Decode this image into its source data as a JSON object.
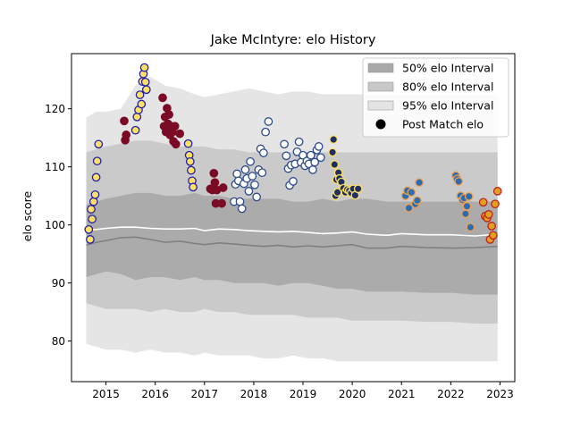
{
  "chart_data": {
    "type": "scatter",
    "title": "Jake McIntyre: elo History",
    "xlabel": "",
    "ylabel": "elo score",
    "xlim": [
      2014.3,
      2023.3
    ],
    "ylim": [
      73,
      129.5
    ],
    "x_ticks": [
      2015,
      2016,
      2017,
      2018,
      2019,
      2020,
      2021,
      2022,
      2023
    ],
    "x_tick_labels": [
      "2015",
      "2016",
      "2017",
      "2018",
      "2019",
      "2020",
      "2021",
      "2022",
      "2023"
    ],
    "y_ticks": [
      80,
      90,
      100,
      110,
      120
    ],
    "y_tick_labels": [
      "80",
      "90",
      "100",
      "110",
      "120"
    ],
    "grid": false,
    "legend_position": "top-right",
    "legend": [
      {
        "label": "50% elo Interval",
        "kind": "band",
        "color": "#a9a9a9"
      },
      {
        "label": "80% elo Interval",
        "kind": "band",
        "color": "#c8c8c8"
      },
      {
        "label": "95% elo Interval",
        "kind": "band",
        "color": "#e4e4e4"
      },
      {
        "label": "Post Match elo",
        "kind": "marker",
        "color": "#000000"
      }
    ],
    "bands": {
      "x": [
        2014.6,
        2014.8,
        2015.0,
        2015.3,
        2015.6,
        2015.9,
        2016.2,
        2016.5,
        2016.8,
        2017.0,
        2017.3,
        2017.6,
        2017.9,
        2018.2,
        2018.5,
        2018.8,
        2019.1,
        2019.4,
        2019.7,
        2020.0,
        2020.3,
        2020.7,
        2021.0,
        2021.5,
        2022.0,
        2022.5,
        2022.95
      ],
      "median": [
        96.5,
        97.0,
        97.3,
        97.8,
        97.9,
        97.5,
        97.0,
        97.2,
        96.8,
        96.6,
        96.9,
        96.7,
        96.5,
        96.3,
        96.5,
        96.2,
        96.4,
        96.2,
        96.4,
        96.6,
        96.0,
        96.0,
        96.3,
        96.1,
        96.0,
        96.1,
        96.3
      ],
      "mean": [
        99.1,
        99.2,
        99.4,
        99.6,
        99.6,
        99.4,
        99.3,
        99.3,
        99.4,
        99.0,
        99.3,
        99.2,
        99.0,
        98.9,
        98.8,
        98.9,
        98.7,
        98.5,
        98.6,
        98.8,
        98.4,
        98.2,
        98.5,
        98.3,
        98.3,
        98.1,
        98.4
      ],
      "p50_low": [
        91.0,
        91.5,
        92.0,
        91.5,
        90.5,
        91.0,
        91.0,
        90.5,
        91.0,
        90.5,
        90.5,
        90.0,
        90.0,
        90.0,
        89.5,
        90.0,
        90.0,
        89.5,
        89.0,
        89.0,
        88.5,
        88.5,
        88.5,
        88.3,
        88.3,
        88.0,
        88.0
      ],
      "p50_high": [
        103.5,
        104.0,
        104.5,
        105.0,
        105.5,
        105.5,
        105.0,
        105.0,
        105.5,
        105.0,
        105.0,
        104.5,
        104.5,
        104.5,
        104.5,
        104.0,
        104.0,
        104.5,
        104.0,
        104.5,
        104.5,
        104.0,
        104.0,
        104.0,
        104.0,
        104.0,
        104.0
      ],
      "p80_low": [
        86.5,
        86.0,
        85.5,
        85.5,
        85.5,
        85.0,
        85.5,
        85.0,
        85.0,
        85.5,
        85.0,
        85.0,
        84.5,
        84.5,
        84.5,
        84.5,
        84.0,
        84.0,
        84.0,
        83.5,
        83.5,
        83.5,
        83.5,
        83.3,
        83.3,
        83.0,
        83.0
      ],
      "p80_high": [
        112.5,
        113.0,
        113.5,
        114.0,
        114.5,
        114.5,
        114.0,
        113.5,
        113.5,
        113.5,
        113.0,
        113.0,
        112.5,
        112.5,
        112.5,
        112.5,
        112.5,
        112.5,
        112.5,
        112.5,
        112.5,
        112.5,
        112.5,
        112.5,
        112.5,
        112.5,
        112.5
      ],
      "p95_low": [
        79.5,
        79.0,
        78.5,
        78.5,
        78.0,
        78.5,
        78.0,
        78.0,
        77.5,
        78.0,
        77.5,
        77.5,
        77.5,
        77.0,
        77.0,
        77.5,
        77.0,
        77.0,
        76.5,
        76.5,
        76.5,
        76.5,
        76.5,
        76.5,
        76.5,
        76.5,
        76.5
      ],
      "p95_high": [
        118.5,
        119.5,
        119.5,
        120.0,
        124.0,
        125.5,
        124.0,
        123.5,
        122.5,
        122.0,
        122.5,
        123.0,
        123.5,
        123.0,
        122.5,
        123.0,
        123.0,
        122.5,
        122.5,
        122.5,
        122.5,
        122.5,
        122.5,
        122.5,
        122.5,
        122.5,
        122.5
      ]
    },
    "series": [
      {
        "fill": "#ffe066",
        "edge": "#1f1fa8",
        "points": [
          [
            2014.65,
            99.2
          ],
          [
            2014.68,
            97.5
          ],
          [
            2014.7,
            102.7
          ],
          [
            2014.72,
            101.0
          ],
          [
            2014.75,
            104.0
          ],
          [
            2014.78,
            105.2
          ],
          [
            2014.8,
            108.2
          ],
          [
            2014.82,
            111.0
          ],
          [
            2014.85,
            113.9
          ]
        ]
      },
      {
        "fill": "#7a0a25",
        "edge": "#7a0a25",
        "points": [
          [
            2015.37,
            117.9
          ],
          [
            2015.39,
            114.6
          ],
          [
            2015.41,
            115.5
          ]
        ]
      },
      {
        "fill": "#ffe066",
        "edge": "#1f1fa8",
        "points": [
          [
            2015.6,
            116.3
          ],
          [
            2015.63,
            118.6
          ],
          [
            2015.66,
            119.8
          ],
          [
            2015.69,
            122.4
          ],
          [
            2015.72,
            120.8
          ],
          [
            2015.74,
            124.7
          ],
          [
            2015.76,
            126.0
          ],
          [
            2015.78,
            127.1
          ],
          [
            2015.8,
            124.6
          ],
          [
            2015.82,
            123.3
          ]
        ]
      },
      {
        "fill": "#7a0a25",
        "edge": "#7a0a25",
        "points": [
          [
            2016.15,
            121.9
          ],
          [
            2016.18,
            117.0
          ],
          [
            2016.2,
            118.6
          ],
          [
            2016.22,
            116.0
          ],
          [
            2016.24,
            120.1
          ],
          [
            2016.26,
            117.4
          ],
          [
            2016.28,
            119.0
          ],
          [
            2016.3,
            115.5
          ],
          [
            2016.32,
            117.0
          ],
          [
            2016.35,
            116.0
          ],
          [
            2016.37,
            114.4
          ],
          [
            2016.4,
            117.0
          ],
          [
            2016.42,
            113.9
          ],
          [
            2016.5,
            115.7
          ]
        ]
      },
      {
        "fill": "#ffe066",
        "edge": "#1f1fa8",
        "points": [
          [
            2016.67,
            114.0
          ],
          [
            2016.69,
            112.0
          ],
          [
            2016.71,
            110.9
          ],
          [
            2016.73,
            109.4
          ],
          [
            2016.75,
            107.6
          ],
          [
            2016.77,
            106.5
          ]
        ]
      },
      {
        "fill": "#7a0a25",
        "edge": "#7a0a25",
        "points": [
          [
            2017.12,
            106.2
          ],
          [
            2017.16,
            106.0
          ],
          [
            2017.19,
            108.9
          ],
          [
            2017.21,
            107.3
          ],
          [
            2017.23,
            103.7
          ],
          [
            2017.25,
            106.0
          ],
          [
            2017.35,
            103.7
          ],
          [
            2017.38,
            106.4
          ]
        ]
      },
      {
        "fill": "#ffffff",
        "edge": "#2c4a8a",
        "points": [
          [
            2017.6,
            104.0
          ],
          [
            2017.63,
            107.0
          ],
          [
            2017.66,
            108.8
          ],
          [
            2017.69,
            107.6
          ],
          [
            2017.72,
            104.0
          ],
          [
            2017.76,
            102.8
          ],
          [
            2017.8,
            107.1
          ],
          [
            2017.83,
            109.5
          ],
          [
            2017.86,
            108.0
          ],
          [
            2017.9,
            105.8
          ],
          [
            2017.93,
            110.9
          ],
          [
            2017.97,
            108.4
          ],
          [
            2018.02,
            106.9
          ],
          [
            2018.06,
            104.8
          ],
          [
            2018.1,
            109.5
          ],
          [
            2018.14,
            113.1
          ],
          [
            2018.17,
            109.0
          ],
          [
            2018.2,
            112.4
          ],
          [
            2018.24,
            116.0
          ],
          [
            2018.3,
            117.8
          ]
        ]
      },
      {
        "fill": "#ffffff",
        "edge": "#2c4a8a",
        "points": [
          [
            2018.62,
            113.9
          ],
          [
            2018.66,
            111.9
          ],
          [
            2018.7,
            109.7
          ],
          [
            2018.73,
            106.8
          ],
          [
            2018.76,
            110.3
          ],
          [
            2018.8,
            107.5
          ],
          [
            2018.84,
            110.5
          ],
          [
            2018.88,
            112.6
          ],
          [
            2018.92,
            114.3
          ],
          [
            2018.96,
            110.8
          ],
          [
            2019.0,
            112.0
          ],
          [
            2019.04,
            110.2
          ],
          [
            2019.08,
            111.0
          ],
          [
            2019.12,
            110.5
          ],
          [
            2019.16,
            112.0
          ],
          [
            2019.2,
            109.5
          ],
          [
            2019.24,
            110.8
          ],
          [
            2019.28,
            112.9
          ],
          [
            2019.32,
            113.5
          ],
          [
            2019.36,
            111.6
          ]
        ]
      },
      {
        "fill": "#1f3060",
        "edge": "#ffe066",
        "points": [
          [
            2019.6,
            112.5
          ],
          [
            2019.62,
            114.7
          ],
          [
            2019.64,
            110.4
          ],
          [
            2019.66,
            105.0
          ],
          [
            2019.68,
            107.8
          ],
          [
            2019.7,
            105.6
          ],
          [
            2019.72,
            109.0
          ],
          [
            2019.74,
            108.0
          ],
          [
            2019.78,
            107.4
          ],
          [
            2019.82,
            106.3
          ],
          [
            2019.86,
            105.6
          ],
          [
            2019.9,
            106.1
          ],
          [
            2019.94,
            105.9
          ],
          [
            2019.98,
            105.5
          ],
          [
            2020.02,
            106.2
          ],
          [
            2020.06,
            105.1
          ],
          [
            2020.12,
            106.2
          ]
        ]
      },
      {
        "fill": "#2c6cb0",
        "edge": "#f0a050",
        "points": [
          [
            2021.08,
            105.0
          ],
          [
            2021.12,
            105.9
          ],
          [
            2021.15,
            102.9
          ],
          [
            2021.2,
            105.6
          ],
          [
            2021.28,
            103.6
          ],
          [
            2021.32,
            104.2
          ],
          [
            2021.36,
            107.3
          ]
        ]
      },
      {
        "fill": "#2c6cb0",
        "edge": "#f0a050",
        "points": [
          [
            2022.1,
            108.5
          ],
          [
            2022.13,
            107.9
          ],
          [
            2022.16,
            107.5
          ],
          [
            2022.2,
            105.0
          ],
          [
            2022.24,
            104.3
          ],
          [
            2022.27,
            104.6
          ],
          [
            2022.3,
            101.9
          ],
          [
            2022.33,
            103.2
          ],
          [
            2022.37,
            104.9
          ],
          [
            2022.4,
            99.6
          ]
        ]
      },
      {
        "fill": "#e0a020",
        "edge": "#c02020",
        "points": [
          [
            2022.66,
            103.9
          ],
          [
            2022.7,
            101.5
          ],
          [
            2022.74,
            101.2
          ],
          [
            2022.77,
            101.8
          ],
          [
            2022.8,
            97.5
          ],
          [
            2022.83,
            99.8
          ],
          [
            2022.86,
            98.2
          ],
          [
            2022.9,
            103.6
          ],
          [
            2022.95,
            105.8
          ]
        ]
      }
    ]
  }
}
